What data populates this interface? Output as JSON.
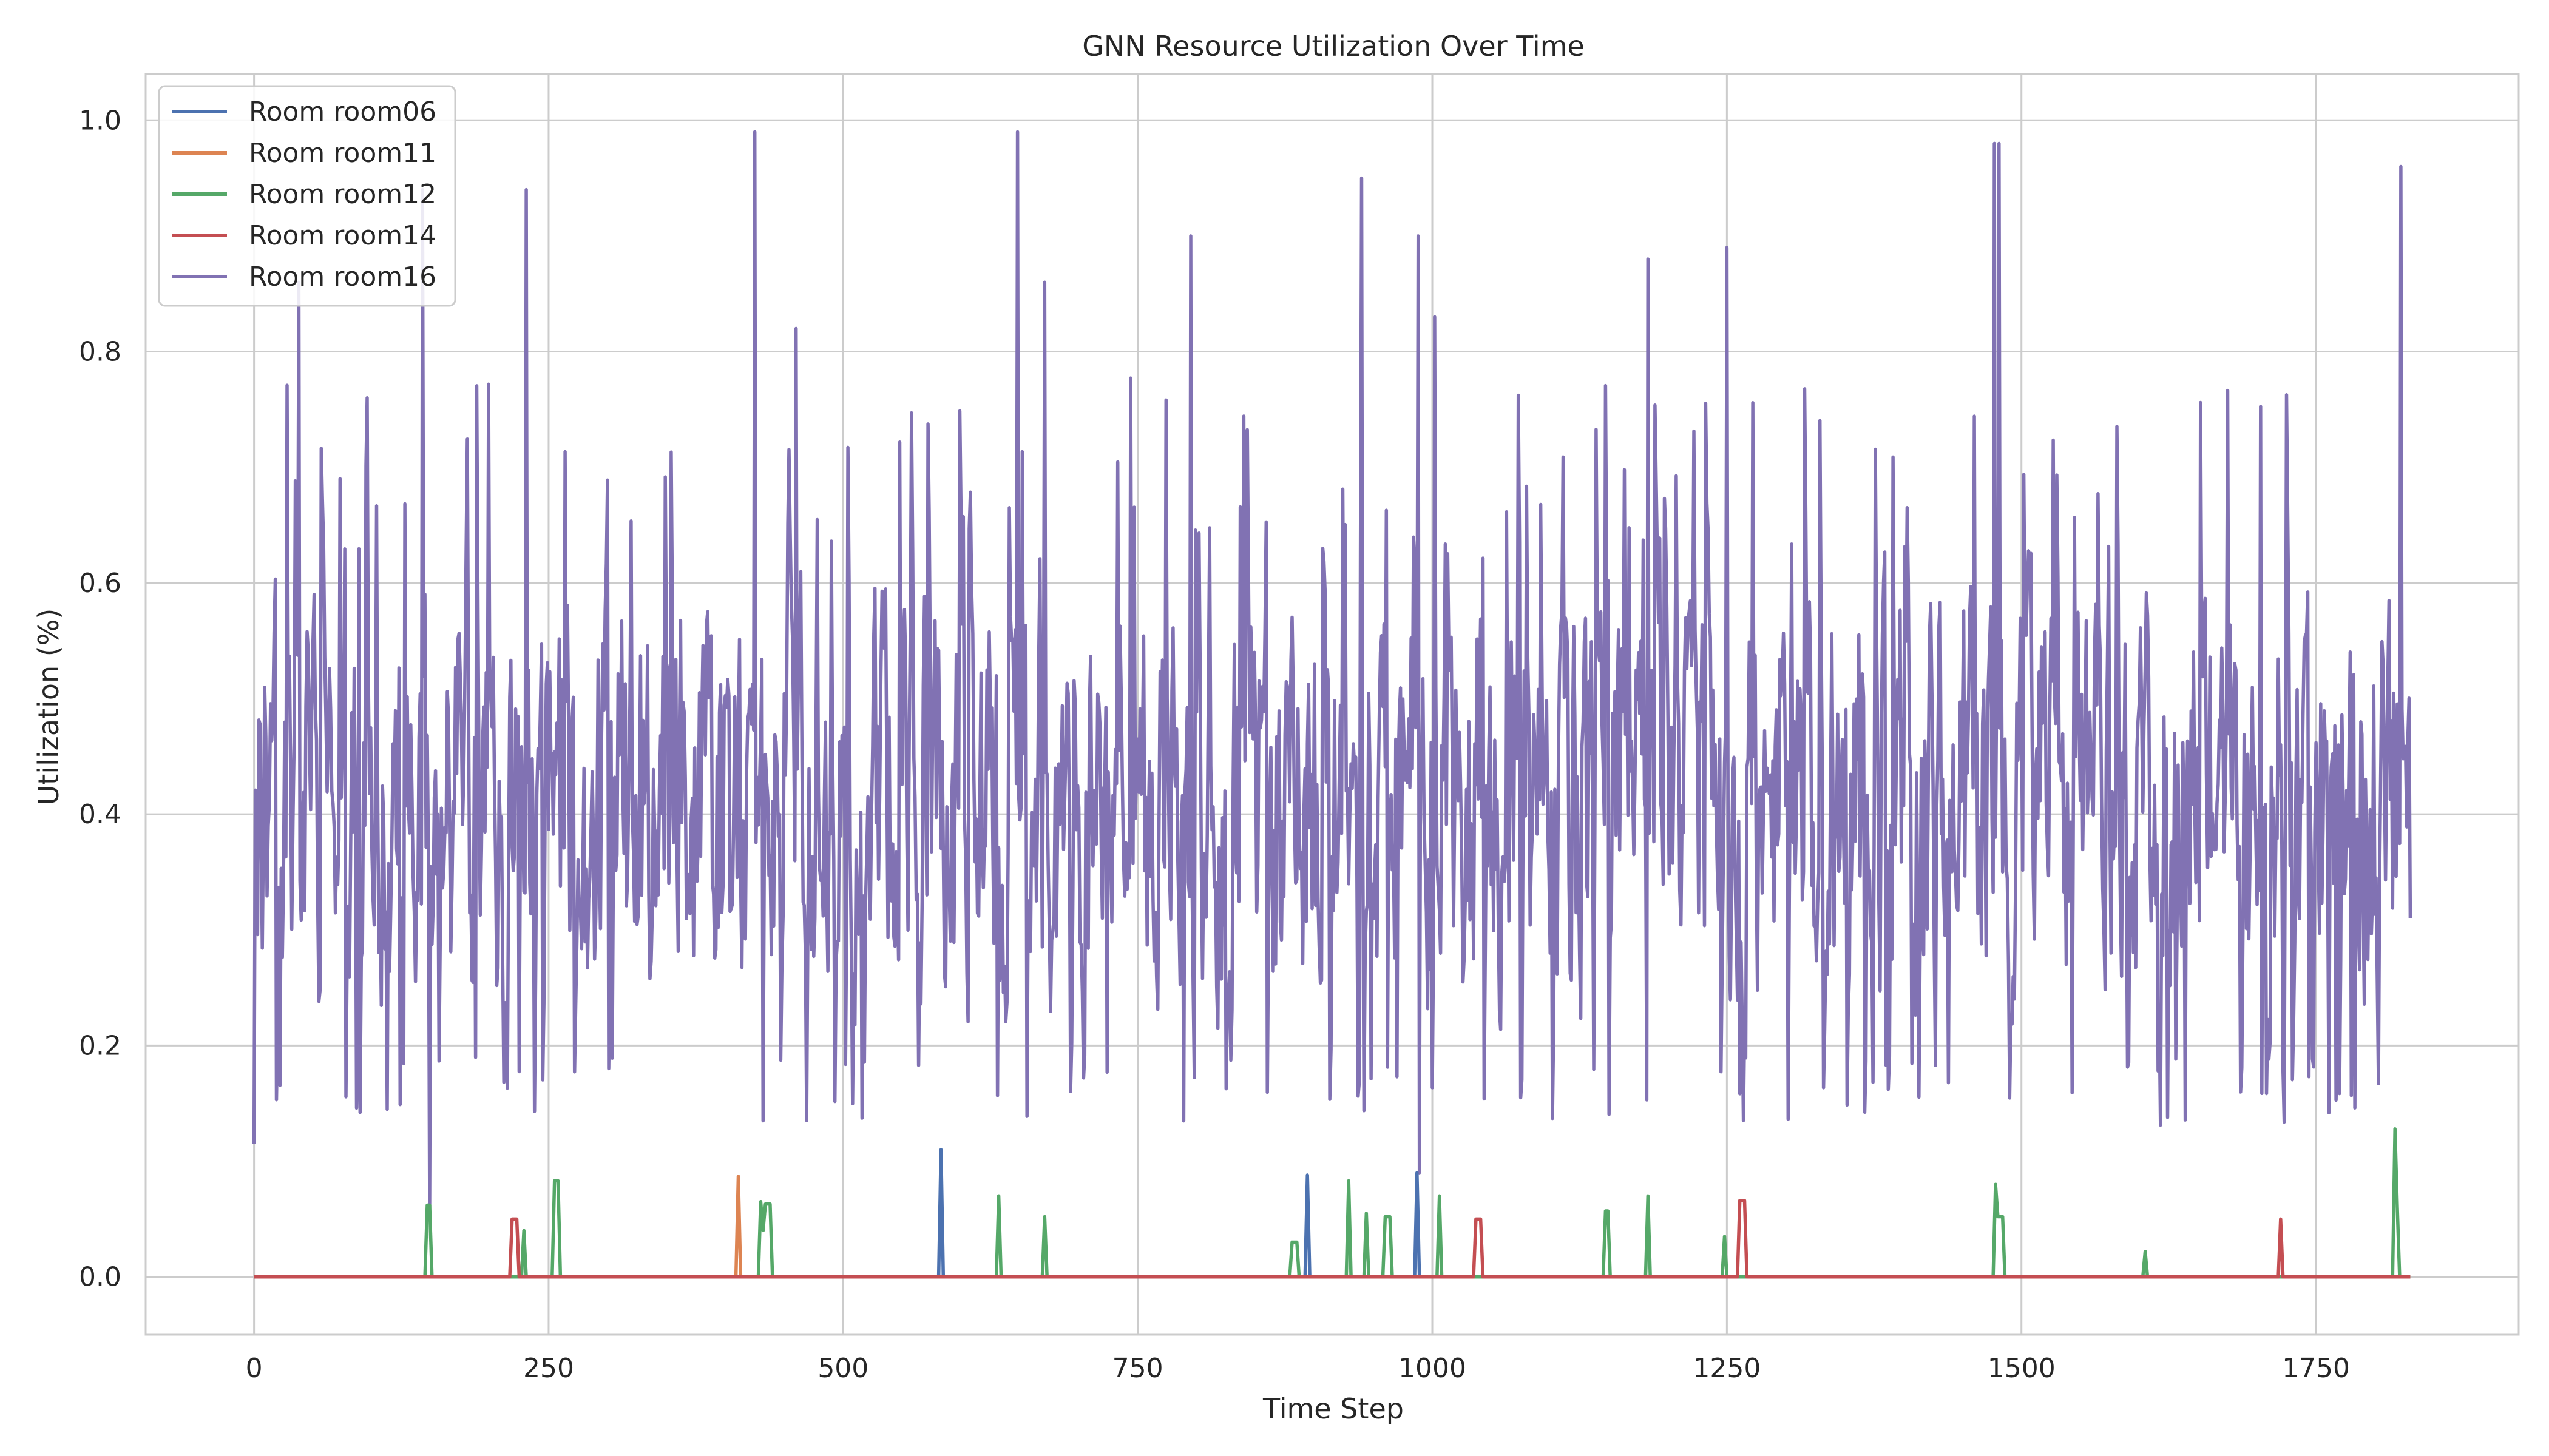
{
  "chart_data": {
    "type": "line",
    "title": "GNN Resource Utilization Over Time",
    "xlabel": "Time Step",
    "ylabel": "Utilization (%)",
    "xlim": [
      -92,
      1922
    ],
    "ylim": [
      -0.05,
      1.04
    ],
    "xticks": [
      0,
      250,
      500,
      750,
      1000,
      1250,
      1500,
      1750
    ],
    "yticks": [
      0.0,
      0.2,
      0.4,
      0.6,
      0.8,
      1.0
    ],
    "xtick_labels": [
      "0",
      "250",
      "500",
      "750",
      "1000",
      "1250",
      "1500",
      "1750"
    ],
    "ytick_labels": [
      "0.0",
      "0.2",
      "0.4",
      "0.6",
      "0.8",
      "1.0"
    ],
    "grid": true,
    "legend_position": "top-left",
    "n_points": 1831,
    "series": [
      {
        "name": "Room room06",
        "color": "#4c72b0",
        "points": [
          [
            0,
            0
          ],
          [
            581,
            0
          ],
          [
            583,
            0.11
          ],
          [
            585,
            0
          ],
          [
            892,
            0
          ],
          [
            894,
            0.088
          ],
          [
            896,
            0
          ],
          [
            985,
            0
          ],
          [
            987,
            0.09
          ],
          [
            989,
            0
          ],
          [
            1830,
            0
          ]
        ]
      },
      {
        "name": "Room room11",
        "color": "#dd8452",
        "points": [
          [
            0,
            0
          ],
          [
            409,
            0
          ],
          [
            411,
            0.087
          ],
          [
            413,
            0
          ],
          [
            1830,
            0
          ]
        ]
      },
      {
        "name": "Room room12",
        "color": "#55a868",
        "points": [
          [
            0,
            0
          ],
          [
            145,
            0
          ],
          [
            147,
            0.062
          ],
          [
            149,
            0.062
          ],
          [
            151,
            0
          ],
          [
            227,
            0
          ],
          [
            229,
            0.04
          ],
          [
            231,
            0
          ],
          [
            253,
            0
          ],
          [
            255,
            0.083
          ],
          [
            258,
            0.083
          ],
          [
            260,
            0
          ],
          [
            428,
            0
          ],
          [
            430,
            0.065
          ],
          [
            432,
            0.04
          ],
          [
            434,
            0.063
          ],
          [
            438,
            0.063
          ],
          [
            440,
            0
          ],
          [
            630,
            0
          ],
          [
            632,
            0.07
          ],
          [
            634,
            0
          ],
          [
            669,
            0
          ],
          [
            671,
            0.052
          ],
          [
            673,
            0
          ],
          [
            879,
            0
          ],
          [
            881,
            0.03
          ],
          [
            885,
            0.03
          ],
          [
            887,
            0
          ],
          [
            927,
            0
          ],
          [
            929,
            0.083
          ],
          [
            931,
            0
          ],
          [
            942,
            0
          ],
          [
            944,
            0.055
          ],
          [
            946,
            0
          ],
          [
            958,
            0
          ],
          [
            960,
            0.052
          ],
          [
            964,
            0.052
          ],
          [
            966,
            0
          ],
          [
            1004,
            0
          ],
          [
            1006,
            0.07
          ],
          [
            1008,
            0
          ],
          [
            1145,
            0
          ],
          [
            1147,
            0.057
          ],
          [
            1149,
            0.057
          ],
          [
            1151,
            0
          ],
          [
            1181,
            0
          ],
          [
            1183,
            0.07
          ],
          [
            1185,
            0
          ],
          [
            1246,
            0
          ],
          [
            1248,
            0.035
          ],
          [
            1250,
            0
          ],
          [
            1476,
            0
          ],
          [
            1478,
            0.08
          ],
          [
            1480,
            0.052
          ],
          [
            1484,
            0.052
          ],
          [
            1486,
            0
          ],
          [
            1603,
            0
          ],
          [
            1605,
            0.022
          ],
          [
            1607,
            0
          ],
          [
            1815,
            0
          ],
          [
            1817,
            0.128
          ],
          [
            1819,
            0.06
          ],
          [
            1821,
            0
          ],
          [
            1830,
            0
          ]
        ]
      },
      {
        "name": "Room room14",
        "color": "#c44e52",
        "points": [
          [
            0,
            0
          ],
          [
            217,
            0
          ],
          [
            219,
            0.05
          ],
          [
            223,
            0.05
          ],
          [
            225,
            0
          ],
          [
            1035,
            0
          ],
          [
            1037,
            0.05
          ],
          [
            1041,
            0.05
          ],
          [
            1043,
            0
          ],
          [
            1259,
            0
          ],
          [
            1261,
            0.066
          ],
          [
            1265,
            0.066
          ],
          [
            1267,
            0
          ],
          [
            1718,
            0
          ],
          [
            1720,
            0.05
          ],
          [
            1722,
            0
          ],
          [
            1830,
            0
          ]
        ]
      },
      {
        "name": "Room room16",
        "color": "#8172b3",
        "spikes": [
          [
            38,
            0.86
          ],
          [
            143,
            0.94
          ],
          [
            149,
            0.06
          ],
          [
            231,
            0.94
          ],
          [
            425,
            0.99
          ],
          [
            460,
            0.82
          ],
          [
            648,
            0.99
          ],
          [
            671,
            0.86
          ],
          [
            795,
            0.9
          ],
          [
            940,
            0.95
          ],
          [
            988,
            0.9
          ],
          [
            989,
            0.09
          ],
          [
            1002,
            0.83
          ],
          [
            1183,
            0.88
          ],
          [
            1250,
            0.89
          ],
          [
            1477,
            0.98
          ],
          [
            1481,
            0.98
          ],
          [
            1822,
            0.96
          ],
          [
            1830,
            0.31
          ]
        ]
      }
    ]
  }
}
